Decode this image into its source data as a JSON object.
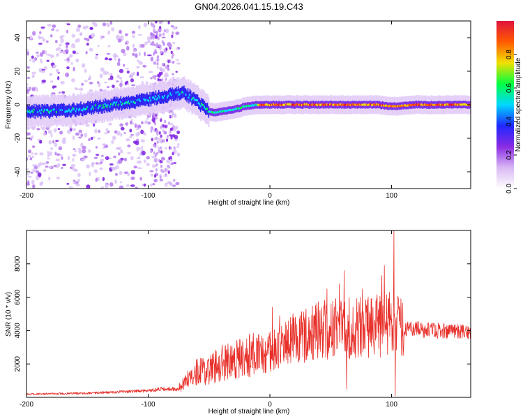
{
  "title": "GN04.2026.041.15.19.C43",
  "colors": {
    "snr_line": "#e8302a",
    "colormap": [
      "#ffffff",
      "#d9b8f5",
      "#8a2be2",
      "#1e28ff",
      "#00d8ff",
      "#00ff40",
      "#f0e000",
      "#ff5a00",
      "#e0143c"
    ]
  },
  "chart_data": [
    {
      "type": "heatmap",
      "name": "spectrogram",
      "xlabel": "Height of straight line (km)",
      "ylabel": "Frequency (Hz)",
      "xlim": [
        -200,
        165
      ],
      "ylim": [
        -50,
        50
      ],
      "xticks": [
        -200,
        -100,
        0,
        100
      ],
      "yticks": [
        -40,
        -20,
        0,
        20,
        40
      ],
      "colorbar": {
        "label": "Normalized spectral amplitude",
        "range": [
          0,
          1
        ],
        "ticks": [
          0.0,
          0.2,
          0.4,
          0.6,
          0.8
        ]
      },
      "ridge": {
        "x": [
          -200,
          -180,
          -160,
          -140,
          -120,
          -100,
          -80,
          -70,
          -60,
          -50,
          -45,
          -40,
          -30,
          -20,
          -10,
          0,
          10,
          50,
          60,
          90,
          100,
          120,
          165
        ],
        "freq": [
          -4,
          -4,
          -3,
          -1,
          1,
          3,
          6,
          7,
          2,
          -4,
          -5,
          -4,
          -3,
          -1,
          0,
          0,
          0,
          0,
          0,
          0,
          -1,
          0,
          0
        ]
      },
      "noise_region": {
        "x_range": [
          -200,
          -75
        ],
        "y_range": [
          -50,
          50
        ]
      }
    },
    {
      "type": "line",
      "name": "snr",
      "xlabel": "Height of straight line (km)",
      "ylabel": "SNR (10 * v/v)",
      "xlim": [
        -200,
        165
      ],
      "ylim": [
        0,
        10000
      ],
      "xticks": [
        -200,
        -100,
        0,
        100
      ],
      "yticks": [
        2000,
        4000,
        6000,
        8000
      ],
      "envelope": {
        "x": [
          -200,
          -150,
          -100,
          -90,
          -75,
          -70,
          -60,
          -50,
          -40,
          -30,
          -20,
          -10,
          0,
          10,
          20,
          30,
          40,
          50,
          60,
          70,
          80,
          90,
          100,
          110,
          120,
          130,
          140,
          150,
          165
        ],
        "y": [
          200,
          250,
          400,
          500,
          500,
          900,
          1500,
          1700,
          2000,
          2300,
          2400,
          2600,
          2700,
          3200,
          3500,
          3800,
          4000,
          4100,
          4200,
          4100,
          4200,
          4300,
          4400,
          4100,
          4100,
          4000,
          4000,
          3950,
          3900
        ]
      },
      "peaks": [
        {
          "x": 2,
          "y": 5400
        },
        {
          "x": 8,
          "y": 4900
        },
        {
          "x": 47,
          "y": 6500
        },
        {
          "x": 57,
          "y": 6800
        },
        {
          "x": 61,
          "y": 7600
        },
        {
          "x": 63,
          "y": 500
        },
        {
          "x": 76,
          "y": 6500
        },
        {
          "x": 92,
          "y": 7300
        },
        {
          "x": 94,
          "y": 7900
        },
        {
          "x": 102,
          "y": 10000
        },
        {
          "x": 103,
          "y": 100
        }
      ]
    }
  ]
}
